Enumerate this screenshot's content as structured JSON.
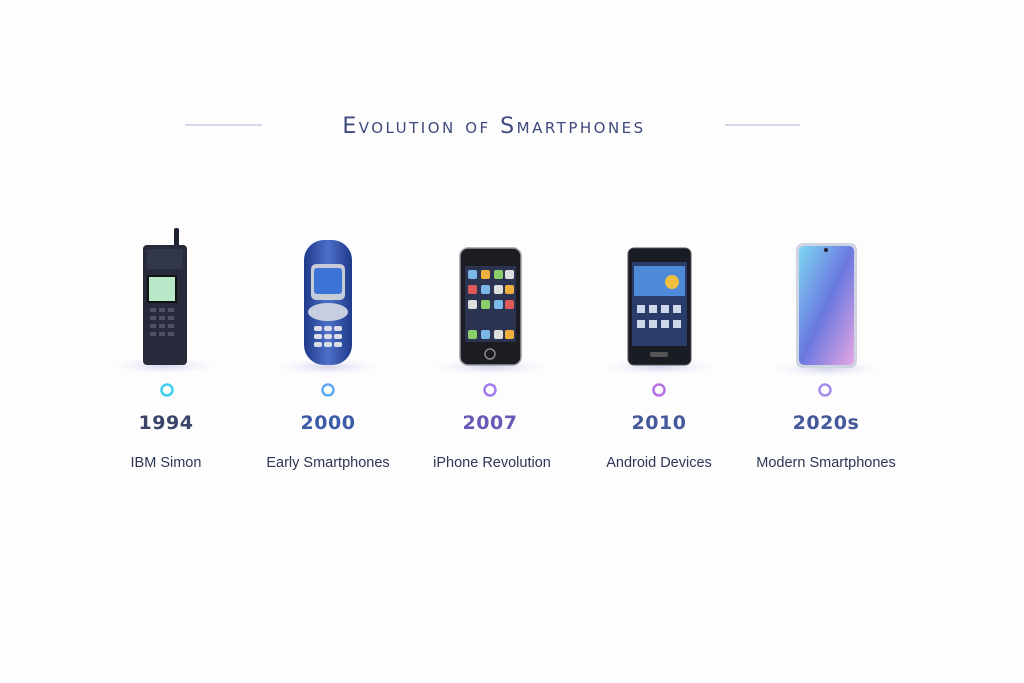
{
  "title": "Evolution of Smartphones",
  "events": [
    {
      "year": "1994",
      "label": "IBM Simon"
    },
    {
      "year": "2000",
      "label": "Early Smartphones"
    },
    {
      "year": "2007",
      "label": "iPhone Revolution"
    },
    {
      "year": "2010",
      "label": "Android Devices"
    },
    {
      "year": "2020s",
      "label": "Modern Smartphones"
    }
  ]
}
